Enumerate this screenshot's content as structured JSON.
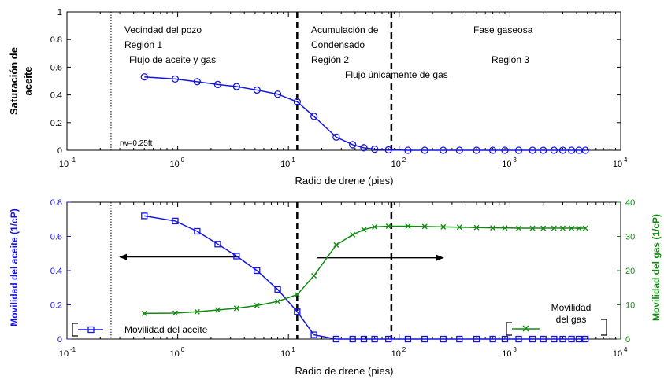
{
  "chart_data": [
    {
      "type": "line",
      "xscale": "log",
      "xlim": [
        0.1,
        10000
      ],
      "ylim": [
        0,
        1
      ],
      "xlabel": "Radio de drene (pies)",
      "ylabel_line1": "Saturación de",
      "ylabel_line2": "aceite",
      "yticks": [
        "0",
        "0.2",
        "0.4",
        "0.6",
        "0.8",
        "1"
      ],
      "xticks": [
        {
          "base": "10",
          "exp": "-1"
        },
        {
          "base": "10",
          "exp": "0"
        },
        {
          "base": "10",
          "exp": "1"
        },
        {
          "base": "10",
          "exp": "2"
        },
        {
          "base": "10",
          "exp": "3"
        },
        {
          "base": "10",
          "exp": "4"
        }
      ],
      "series": [
        {
          "color": "#1515e0",
          "marker": "circle",
          "x": [
            0.5,
            0.95,
            1.5,
            2.3,
            3.4,
            5.2,
            8.0,
            12,
            17,
            27,
            38,
            48,
            60,
            80,
            120,
            170,
            250,
            350,
            500,
            700,
            900,
            1200,
            1600,
            2000,
            2500,
            3000,
            3600,
            4200,
            4800
          ],
          "y": [
            0.53,
            0.515,
            0.495,
            0.475,
            0.46,
            0.435,
            0.405,
            0.35,
            0.245,
            0.095,
            0.04,
            0.018,
            0.008,
            0.003,
            0.0,
            0.0,
            0.0,
            0.0,
            0.0,
            0.0,
            0.0,
            0.0,
            0.0,
            0.0,
            0.0,
            0.0,
            0.0,
            0.0,
            0.0
          ]
        }
      ],
      "vlines": [
        {
          "x": 0.25,
          "style": "dotted"
        },
        {
          "x": 12,
          "style": "dashed"
        },
        {
          "x": 85,
          "style": "dashed"
        }
      ],
      "annotations": {
        "region1_line1": "Vecindad del pozo",
        "region1_line2": "Región 1",
        "region1_line3": "Flujo de aceite y gas",
        "region2_line1": "Acumulación de",
        "region2_line2": "Condensado",
        "region2_line3": "Región 2",
        "gas_only": "Flujo únicamente de gas",
        "region3_line1": "Fase gaseosa",
        "region3_line2": "Región 3",
        "rw": "rw=0.25ft"
      }
    },
    {
      "type": "line",
      "xscale": "log",
      "xlim": [
        0.1,
        10000
      ],
      "ylim_left": [
        0,
        0.8
      ],
      "ylim_right": [
        0,
        40
      ],
      "xlabel": "Radio de drene (pies)",
      "ylabel_left": "Movilidad del aceite (1/cP)",
      "ylabel_right": "Movilidad del gas (1/cP)",
      "yticks_left": [
        "0",
        "0.2",
        "0.4",
        "0.6",
        "0.8"
      ],
      "yticks_right": [
        "0",
        "10",
        "20",
        "30",
        "40"
      ],
      "xticks": [
        {
          "base": "10",
          "exp": "-1"
        },
        {
          "base": "10",
          "exp": "0"
        },
        {
          "base": "10",
          "exp": "1"
        },
        {
          "base": "10",
          "exp": "2"
        },
        {
          "base": "10",
          "exp": "3"
        },
        {
          "base": "10",
          "exp": "4"
        }
      ],
      "series": [
        {
          "name": "Movilidad del aceite",
          "axis": "left",
          "color": "#1515e0",
          "marker": "square",
          "x": [
            0.5,
            0.95,
            1.5,
            2.3,
            3.4,
            5.2,
            8.0,
            12,
            17,
            27,
            38,
            48,
            60,
            80,
            120,
            170,
            250,
            350,
            500,
            700,
            900,
            1200,
            1600,
            2000,
            2500,
            3000,
            3600,
            4200,
            4800
          ],
          "y": [
            0.72,
            0.69,
            0.63,
            0.555,
            0.485,
            0.4,
            0.29,
            0.16,
            0.025,
            0.0,
            0.0,
            0.0,
            0.0,
            0.0,
            0.0,
            0.0,
            0.0,
            0.0,
            0.0,
            0.0,
            0.0,
            0.0,
            0.0,
            0.0,
            0.0,
            0.0,
            0.0,
            0.0,
            0.0
          ]
        },
        {
          "name_line1": "Movilidad",
          "name_line2": "del gas",
          "axis": "right",
          "color": "#128a12",
          "marker": "x",
          "x": [
            0.5,
            0.95,
            1.5,
            2.3,
            3.4,
            5.2,
            8.0,
            12,
            17,
            27,
            38,
            48,
            60,
            80,
            120,
            170,
            250,
            350,
            500,
            700,
            900,
            1200,
            1600,
            2000,
            2500,
            3000,
            3600,
            4200,
            4800
          ],
          "y": [
            7.5,
            7.6,
            8.0,
            8.5,
            9.0,
            9.8,
            11.0,
            13.0,
            18.5,
            27.5,
            30.5,
            32.0,
            32.8,
            33.0,
            33.0,
            32.9,
            32.8,
            32.7,
            32.6,
            32.5,
            32.5,
            32.4,
            32.4,
            32.4,
            32.4,
            32.4,
            32.4,
            32.4,
            32.4
          ]
        }
      ],
      "vlines": [
        {
          "x": 0.25,
          "style": "dotted"
        },
        {
          "x": 12,
          "style": "dashed"
        },
        {
          "x": 85,
          "style": "dashed"
        }
      ],
      "arrows": [
        {
          "from_x": 3.6,
          "to_x": 0.3,
          "y": 0.48,
          "axis": "left"
        },
        {
          "from_x": 18,
          "to_x": 250,
          "y": 0.475,
          "axis": "left"
        }
      ]
    }
  ]
}
